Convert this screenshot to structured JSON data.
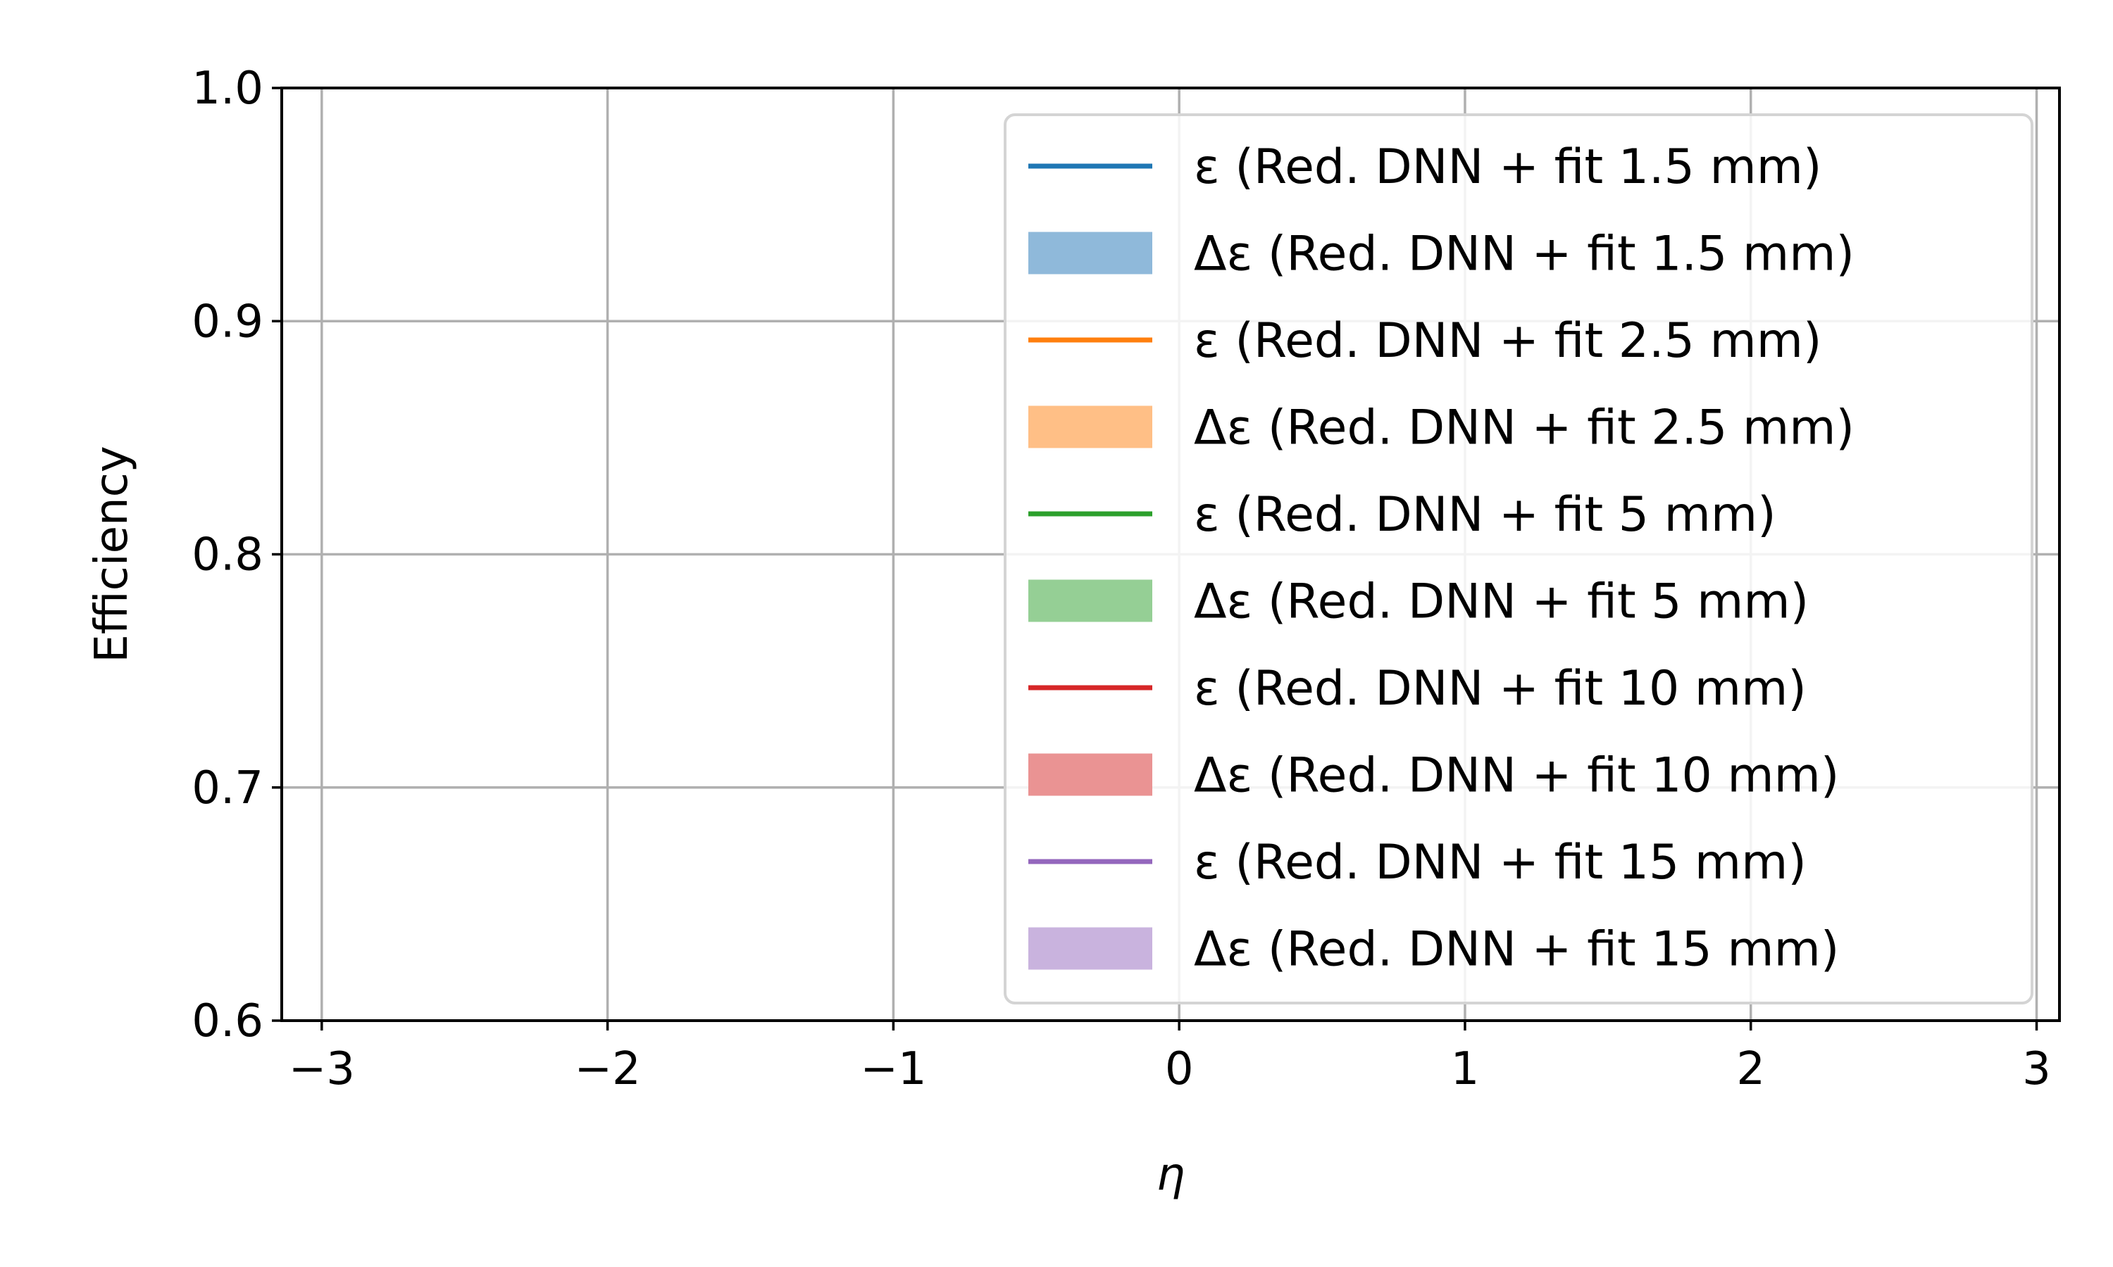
{
  "chart_data": {
    "type": "line",
    "title": "",
    "xlabel": "η",
    "ylabel": "Efficiency",
    "xlim": [
      -3.14,
      3.08
    ],
    "ylim": [
      0.6,
      1.0
    ],
    "xticks": [
      -3,
      -2,
      -1,
      0,
      1,
      2,
      3
    ],
    "xtick_labels": [
      "−3",
      "−2",
      "−1",
      "0",
      "1",
      "2",
      "3"
    ],
    "yticks": [
      0.6,
      0.7,
      0.8,
      0.9,
      1.0
    ],
    "ytick_labels": [
      "0.6",
      "0.7",
      "0.8",
      "0.9",
      "1.0"
    ],
    "grid": true,
    "legend_position": "top-right",
    "legend": [
      {
        "label": "ε (Red. DNN + fit 1.5 mm)",
        "kind": "line",
        "color": "#1f77b4"
      },
      {
        "label": "Δε (Red. DNN + fit 1.5 mm)",
        "kind": "band",
        "color": "#8fb9da"
      },
      {
        "label": "ε (Red. DNN + fit 2.5 mm)",
        "kind": "line",
        "color": "#ff7f0e"
      },
      {
        "label": "Δε (Red. DNN + fit 2.5 mm)",
        "kind": "band",
        "color": "#ffbf86"
      },
      {
        "label": "ε (Red. DNN + fit 5 mm)",
        "kind": "line",
        "color": "#2ca02c"
      },
      {
        "label": "Δε (Red. DNN + fit 5 mm)",
        "kind": "band",
        "color": "#95cf95"
      },
      {
        "label": "ε (Red. DNN + fit 10 mm)",
        "kind": "line",
        "color": "#d62728"
      },
      {
        "label": "Δε (Red. DNN + fit 10 mm)",
        "kind": "band",
        "color": "#ea9393"
      },
      {
        "label": "ε (Red. DNN + fit 15 mm)",
        "kind": "line",
        "color": "#9467bd"
      },
      {
        "label": "Δε (Red. DNN + fit 15 mm)",
        "kind": "band",
        "color": "#c9b3de"
      }
    ],
    "series": []
  }
}
